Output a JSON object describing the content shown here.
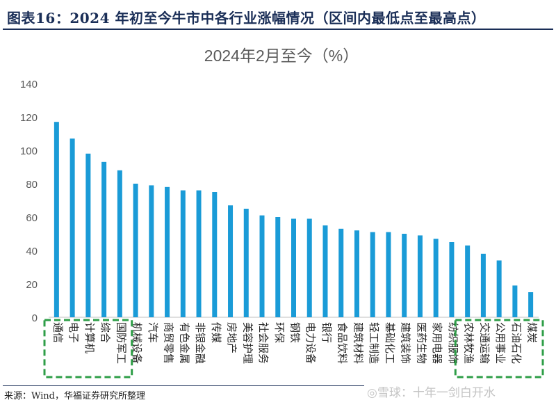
{
  "header": {
    "title": "图表16：2024 年初至今牛市中各行业涨幅情况（区间内最低点至最高点）"
  },
  "footer": {
    "source": "来源：Wind，华福证券研究所整理",
    "watermark": "◎雪球：十年一剑白开水"
  },
  "colors": {
    "bar": "#1a9bd7",
    "highlight_box": "#2e9e47",
    "axis": "#bfbfbf",
    "text": "#595959"
  },
  "chart_data": {
    "type": "bar",
    "title": "2024年2月至今（%）",
    "xlabel": "",
    "ylabel": "",
    "ylim": [
      0,
      140
    ],
    "yticks": [
      0,
      20,
      40,
      60,
      80,
      100,
      120,
      140
    ],
    "categories": [
      "通信",
      "电子",
      "计算机",
      "综合",
      "国防军工",
      "机械设备",
      "汽车",
      "商贸零售",
      "有色金属",
      "非银金融",
      "传媒",
      "房地产",
      "美容护理",
      "社会服务",
      "环保",
      "钢铁",
      "电力设备",
      "银行",
      "食品饮料",
      "建筑材料",
      "轻工制造",
      "基础化工",
      "建筑装饰",
      "医药生物",
      "家用电器",
      "纺织服饰",
      "农林牧渔",
      "交通运输",
      "公用事业",
      "石油石化",
      "煤炭"
    ],
    "values": [
      117,
      107,
      98,
      93,
      88,
      80,
      79,
      78,
      76,
      76,
      75,
      67,
      65,
      61,
      60,
      59,
      59,
      55,
      53,
      52,
      51,
      51,
      50,
      49,
      47,
      45,
      43,
      38,
      34,
      19,
      15
    ],
    "highlight_groups": [
      {
        "label": "top-gainers",
        "start": 0,
        "end": 4
      },
      {
        "label": "bottom-gainers",
        "start": 26,
        "end": 30
      }
    ]
  }
}
